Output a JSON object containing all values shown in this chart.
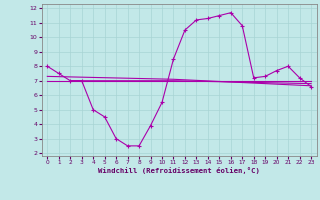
{
  "xlabel": "Windchill (Refroidissement éolien,°C)",
  "bg_color": "#c2e8e8",
  "grid_color": "#a8d4d4",
  "line_color": "#aa00aa",
  "xlim": [
    -0.5,
    23.5
  ],
  "ylim": [
    1.8,
    12.3
  ],
  "yticks": [
    2,
    3,
    4,
    5,
    6,
    7,
    8,
    9,
    10,
    11,
    12
  ],
  "xticks": [
    0,
    1,
    2,
    3,
    4,
    5,
    6,
    7,
    8,
    9,
    10,
    11,
    12,
    13,
    14,
    15,
    16,
    17,
    18,
    19,
    20,
    21,
    22,
    23
  ],
  "series1_x": [
    0,
    1,
    2,
    3,
    4,
    5,
    6,
    7,
    8,
    9,
    10,
    11,
    12,
    13,
    14,
    15,
    16,
    17,
    18,
    19,
    20,
    21,
    22,
    23
  ],
  "series1_y": [
    8.0,
    7.5,
    7.0,
    7.0,
    5.0,
    4.5,
    3.0,
    2.5,
    2.5,
    3.9,
    5.5,
    8.5,
    10.5,
    11.2,
    11.3,
    11.5,
    11.7,
    10.8,
    7.2,
    7.3,
    7.7,
    8.0,
    7.2,
    6.6
  ],
  "line2_x": [
    0,
    9,
    23
  ],
  "line2_y": [
    7.0,
    7.0,
    7.0
  ],
  "line3_x": [
    2,
    11,
    23
  ],
  "line3_y": [
    7.0,
    7.0,
    6.8
  ],
  "line4_x": [
    0,
    11,
    23
  ],
  "line4_y": [
    7.3,
    7.1,
    6.65
  ]
}
